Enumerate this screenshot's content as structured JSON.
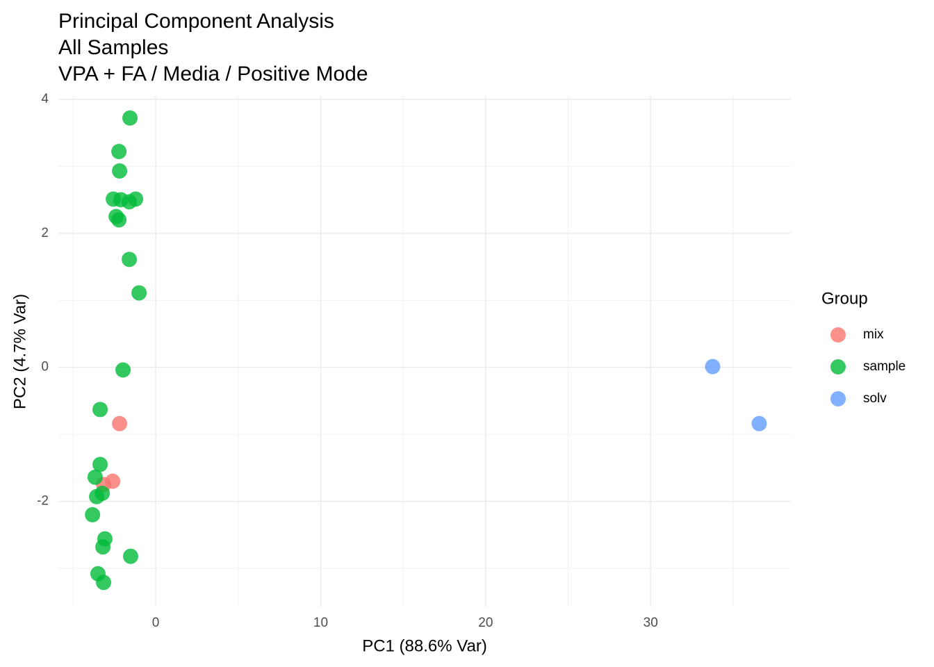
{
  "chart_data": {
    "type": "scatter",
    "title_lines": [
      "Principal Component Analysis",
      "All Samples",
      "VPA + FA / Media / Positive Mode"
    ],
    "x_label": "PC1 (88.6% Var)",
    "y_label": "PC2 (4.7% Var)",
    "xlim": [
      -5.9,
      38.5
    ],
    "ylim": [
      -3.57,
      4.05
    ],
    "xticks": [
      0,
      10,
      20,
      30
    ],
    "yticks": [
      -2,
      0,
      2,
      4
    ],
    "grid": true,
    "legend_title": "Group",
    "legend_position": "right",
    "series": [
      {
        "name": "mix",
        "color": "#F8766D",
        "x": [
          -2.19,
          -2.61,
          -3.16
        ],
        "values": [
          -0.84,
          -1.7,
          -1.75
        ]
      },
      {
        "name": "sample",
        "color": "#00BA38",
        "x": [
          -1.56,
          -2.23,
          -2.19,
          -2.57,
          -2.11,
          -1.6,
          -1.22,
          -2.4,
          -2.23,
          -1.6,
          -1.01,
          -1.98,
          -3.37,
          -3.37,
          -3.67,
          -3.24,
          -3.58,
          -3.83,
          -3.08,
          -3.2,
          -1.52,
          -3.5,
          -3.16
        ],
        "values": [
          3.72,
          3.22,
          2.93,
          2.51,
          2.5,
          2.47,
          2.51,
          2.25,
          2.2,
          1.61,
          1.11,
          -0.04,
          -0.63,
          -1.45,
          -1.64,
          -1.88,
          -1.93,
          -2.2,
          -2.56,
          -2.68,
          -2.82,
          -3.08,
          -3.21
        ]
      },
      {
        "name": "solv",
        "color": "#619CFF",
        "x": [
          33.76,
          36.58
        ],
        "values": [
          0.01,
          -0.84
        ]
      }
    ]
  }
}
